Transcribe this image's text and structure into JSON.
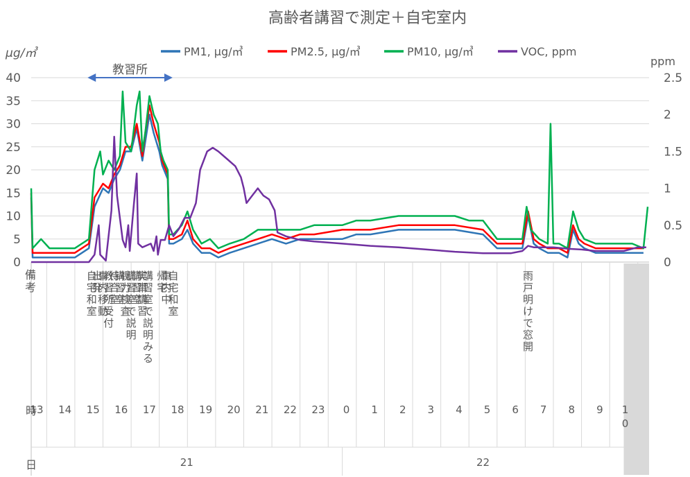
{
  "chart_data": {
    "type": "line",
    "title": "高齢者講習で測定＋自宅室内",
    "y_left_unit": "μg/㎥",
    "y_right_unit": "ppm",
    "ylim_left": [
      0,
      40
    ],
    "ylim_right": [
      0,
      2.5
    ],
    "y_left_ticks": [
      "0",
      "5",
      "10",
      "15",
      "20",
      "25",
      "30",
      "35",
      "40"
    ],
    "y_right_ticks": [
      "0",
      "0.5",
      "1",
      "1.5",
      "2",
      "2.5"
    ],
    "grid": true,
    "legend_position": "top",
    "x_range_hours": [
      12.95,
      34.9
    ],
    "series": [
      {
        "name": "PM1, μg/㎥",
        "axis": "left",
        "color": "#2E75B6",
        "points": [
          [
            12.95,
            14
          ],
          [
            13.0,
            1
          ],
          [
            14.5,
            1
          ],
          [
            15.0,
            3
          ],
          [
            15.2,
            12
          ],
          [
            15.5,
            16
          ],
          [
            15.7,
            15
          ],
          [
            15.9,
            18
          ],
          [
            16.1,
            20
          ],
          [
            16.3,
            24
          ],
          [
            16.5,
            24
          ],
          [
            16.7,
            29
          ],
          [
            16.9,
            22
          ],
          [
            17.0,
            26
          ],
          [
            17.15,
            32
          ],
          [
            17.3,
            28
          ],
          [
            17.5,
            24
          ],
          [
            17.6,
            21
          ],
          [
            17.8,
            18
          ],
          [
            17.85,
            4
          ],
          [
            18.0,
            4
          ],
          [
            18.3,
            5
          ],
          [
            18.5,
            7
          ],
          [
            18.7,
            4
          ],
          [
            19.0,
            2
          ],
          [
            19.3,
            2
          ],
          [
            19.6,
            1
          ],
          [
            20.0,
            2
          ],
          [
            20.5,
            3
          ],
          [
            21.0,
            4
          ],
          [
            21.5,
            5
          ],
          [
            22.0,
            4
          ],
          [
            22.5,
            5
          ],
          [
            23.0,
            5
          ],
          [
            24.0,
            5
          ],
          [
            24.5,
            6
          ],
          [
            25.0,
            6
          ],
          [
            26.0,
            7
          ],
          [
            27.0,
            7
          ],
          [
            28.0,
            7
          ],
          [
            29.0,
            6
          ],
          [
            29.5,
            3
          ],
          [
            30.0,
            3
          ],
          [
            30.4,
            3
          ],
          [
            30.6,
            10
          ],
          [
            30.8,
            4
          ],
          [
            31.0,
            3
          ],
          [
            31.3,
            2
          ],
          [
            31.7,
            2
          ],
          [
            32.0,
            1
          ],
          [
            32.2,
            7
          ],
          [
            32.4,
            4
          ],
          [
            32.6,
            3
          ],
          [
            33.0,
            2
          ],
          [
            33.5,
            2
          ],
          [
            34.0,
            2
          ],
          [
            34.3,
            2
          ],
          [
            34.7,
            2
          ]
        ]
      },
      {
        "name": "PM2.5, μg/㎥",
        "axis": "left",
        "color": "#FF0000",
        "points": [
          [
            12.95,
            15
          ],
          [
            13.0,
            2
          ],
          [
            14.5,
            2
          ],
          [
            15.0,
            4
          ],
          [
            15.2,
            14
          ],
          [
            15.5,
            17
          ],
          [
            15.7,
            16
          ],
          [
            15.9,
            19
          ],
          [
            16.1,
            21
          ],
          [
            16.3,
            25
          ],
          [
            16.5,
            25
          ],
          [
            16.7,
            30
          ],
          [
            16.9,
            23
          ],
          [
            17.0,
            28
          ],
          [
            17.15,
            34
          ],
          [
            17.3,
            30
          ],
          [
            17.5,
            26
          ],
          [
            17.6,
            22
          ],
          [
            17.8,
            19
          ],
          [
            17.85,
            5
          ],
          [
            18.0,
            5
          ],
          [
            18.3,
            6
          ],
          [
            18.5,
            9
          ],
          [
            18.7,
            5
          ],
          [
            19.0,
            3
          ],
          [
            19.3,
            3
          ],
          [
            19.6,
            2
          ],
          [
            20.0,
            3
          ],
          [
            20.5,
            4
          ],
          [
            21.0,
            5
          ],
          [
            21.5,
            6
          ],
          [
            22.0,
            5
          ],
          [
            22.5,
            6
          ],
          [
            23.0,
            6
          ],
          [
            24.0,
            7
          ],
          [
            24.5,
            7
          ],
          [
            25.0,
            7
          ],
          [
            26.0,
            8
          ],
          [
            27.0,
            8
          ],
          [
            28.0,
            8
          ],
          [
            29.0,
            7
          ],
          [
            29.5,
            4
          ],
          [
            30.0,
            4
          ],
          [
            30.4,
            4
          ],
          [
            30.6,
            11
          ],
          [
            30.8,
            5
          ],
          [
            31.0,
            4
          ],
          [
            31.3,
            3
          ],
          [
            31.7,
            3
          ],
          [
            32.0,
            2
          ],
          [
            32.2,
            8
          ],
          [
            32.4,
            5
          ],
          [
            32.6,
            4
          ],
          [
            33.0,
            3
          ],
          [
            33.5,
            3
          ],
          [
            34.0,
            3
          ],
          [
            34.3,
            3
          ],
          [
            34.7,
            3
          ]
        ]
      },
      {
        "name": "PM10, μg/㎥",
        "axis": "left",
        "color": "#00B050",
        "points": [
          [
            12.95,
            16
          ],
          [
            13.0,
            3
          ],
          [
            13.3,
            5
          ],
          [
            13.6,
            3
          ],
          [
            14.5,
            3
          ],
          [
            15.0,
            5
          ],
          [
            15.2,
            20
          ],
          [
            15.4,
            24
          ],
          [
            15.5,
            19
          ],
          [
            15.7,
            22
          ],
          [
            15.9,
            20
          ],
          [
            16.1,
            23
          ],
          [
            16.2,
            37
          ],
          [
            16.3,
            26
          ],
          [
            16.5,
            24
          ],
          [
            16.7,
            34
          ],
          [
            16.8,
            37
          ],
          [
            16.9,
            24
          ],
          [
            17.0,
            28
          ],
          [
            17.15,
            36
          ],
          [
            17.3,
            32
          ],
          [
            17.45,
            30
          ],
          [
            17.55,
            24
          ],
          [
            17.65,
            22
          ],
          [
            17.8,
            20
          ],
          [
            17.85,
            6
          ],
          [
            18.0,
            6
          ],
          [
            18.3,
            8
          ],
          [
            18.5,
            11
          ],
          [
            18.7,
            7
          ],
          [
            19.0,
            4
          ],
          [
            19.3,
            5
          ],
          [
            19.6,
            3
          ],
          [
            20.0,
            4
          ],
          [
            20.5,
            5
          ],
          [
            21.0,
            7
          ],
          [
            21.5,
            7
          ],
          [
            22.0,
            7
          ],
          [
            22.5,
            7
          ],
          [
            23.0,
            8
          ],
          [
            24.0,
            8
          ],
          [
            24.5,
            9
          ],
          [
            25.0,
            9
          ],
          [
            26.0,
            10
          ],
          [
            27.0,
            10
          ],
          [
            28.0,
            10
          ],
          [
            28.5,
            9
          ],
          [
            29.0,
            9
          ],
          [
            29.5,
            5
          ],
          [
            30.0,
            5
          ],
          [
            30.4,
            5
          ],
          [
            30.55,
            12
          ],
          [
            30.7,
            7
          ],
          [
            31.0,
            5
          ],
          [
            31.3,
            4
          ],
          [
            31.4,
            30
          ],
          [
            31.5,
            4
          ],
          [
            31.7,
            4
          ],
          [
            32.0,
            3
          ],
          [
            32.2,
            11
          ],
          [
            32.4,
            7
          ],
          [
            32.6,
            5
          ],
          [
            33.0,
            4
          ],
          [
            33.5,
            4
          ],
          [
            34.0,
            4
          ],
          [
            34.3,
            4
          ],
          [
            34.7,
            3
          ],
          [
            34.85,
            12
          ]
        ]
      },
      {
        "name": "VOC, ppm",
        "axis": "right",
        "color": "#7030A0",
        "points": [
          [
            12.95,
            0
          ],
          [
            13.0,
            0
          ],
          [
            14.5,
            0
          ],
          [
            15.0,
            0
          ],
          [
            15.2,
            0.1
          ],
          [
            15.35,
            0.5
          ],
          [
            15.4,
            0.1
          ],
          [
            15.6,
            0.02
          ],
          [
            15.8,
            0.7
          ],
          [
            15.9,
            1.7
          ],
          [
            16.0,
            0.9
          ],
          [
            16.2,
            0.3
          ],
          [
            16.3,
            0.2
          ],
          [
            16.4,
            0.5
          ],
          [
            16.45,
            0.15
          ],
          [
            16.6,
            0.8
          ],
          [
            16.7,
            1.2
          ],
          [
            16.75,
            0.25
          ],
          [
            16.9,
            0.2
          ],
          [
            17.2,
            0.25
          ],
          [
            17.3,
            0.15
          ],
          [
            17.4,
            0.35
          ],
          [
            17.45,
            0.1
          ],
          [
            17.55,
            0.3
          ],
          [
            17.7,
            0.3
          ],
          [
            17.85,
            0.5
          ],
          [
            18.0,
            0.35
          ],
          [
            18.2,
            0.45
          ],
          [
            18.4,
            0.6
          ],
          [
            18.6,
            0.6
          ],
          [
            18.8,
            0.8
          ],
          [
            18.95,
            1.25
          ],
          [
            19.2,
            1.5
          ],
          [
            19.4,
            1.55
          ],
          [
            19.6,
            1.5
          ],
          [
            19.9,
            1.4
          ],
          [
            20.2,
            1.3
          ],
          [
            20.4,
            1.15
          ],
          [
            20.5,
            1.0
          ],
          [
            20.6,
            0.8
          ],
          [
            20.8,
            0.9
          ],
          [
            21.0,
            1.0
          ],
          [
            21.2,
            0.9
          ],
          [
            21.4,
            0.85
          ],
          [
            21.6,
            0.7
          ],
          [
            21.7,
            0.4
          ],
          [
            22.0,
            0.35
          ],
          [
            22.5,
            0.3
          ],
          [
            23.0,
            0.28
          ],
          [
            24.0,
            0.25
          ],
          [
            25.0,
            0.22
          ],
          [
            26.0,
            0.2
          ],
          [
            27.0,
            0.17
          ],
          [
            28.0,
            0.14
          ],
          [
            29.0,
            0.12
          ],
          [
            29.5,
            0.12
          ],
          [
            30.0,
            0.12
          ],
          [
            30.4,
            0.15
          ],
          [
            30.6,
            0.22
          ],
          [
            30.8,
            0.2
          ],
          [
            31.0,
            0.2
          ],
          [
            31.5,
            0.2
          ],
          [
            32.0,
            0.18
          ],
          [
            32.5,
            0.17
          ],
          [
            33.0,
            0.15
          ],
          [
            33.5,
            0.15
          ],
          [
            34.0,
            0.15
          ],
          [
            34.5,
            0.2
          ],
          [
            34.8,
            0.2
          ]
        ]
      }
    ],
    "annotation": {
      "label": "教習所",
      "from_hour": 15.0,
      "to_hour": 17.9
    },
    "remarks_label": "備考",
    "remarks": [
      {
        "hour": 15.1,
        "text": "自宅和室"
      },
      {
        "hour": 15.3,
        "text": "出発"
      },
      {
        "hour": 15.5,
        "text": "車内移動"
      },
      {
        "hour": 15.7,
        "text": "教習所受付"
      },
      {
        "hour": 15.9,
        "text": "待合室"
      },
      {
        "hour": 16.1,
        "text": "講習室"
      },
      {
        "hour": 16.3,
        "text": "視力検査"
      },
      {
        "hour": 16.5,
        "text": "講習室で説明"
      },
      {
        "hour": 16.7,
        "text": "講習室"
      },
      {
        "hour": 16.9,
        "text": "実車講習"
      },
      {
        "hour": 17.1,
        "text": "講習室で説明みる"
      },
      {
        "hour": 17.6,
        "text": "帰宅"
      },
      {
        "hour": 17.75,
        "text": "車内中"
      },
      {
        "hour": 18.0,
        "text": "自宅和室"
      },
      {
        "hour": 30.6,
        "text": "雨戸明けで窓開"
      }
    ],
    "hour_row_label": "時",
    "hour_labels": [
      "13",
      "14",
      "15",
      "16",
      "17",
      "18",
      "19",
      "20",
      "21",
      "22",
      "23",
      "0",
      "1",
      "2",
      "3",
      "4",
      "5",
      "6",
      "7",
      "8",
      "9",
      "10"
    ],
    "day_row_label": "日",
    "days": [
      {
        "label": "21",
        "from_hour": 12.95,
        "to_hour": 24.0
      },
      {
        "label": "22",
        "from_hour": 24.0,
        "to_hour": 34.9
      }
    ],
    "shaded_from_hour": 34.0
  }
}
